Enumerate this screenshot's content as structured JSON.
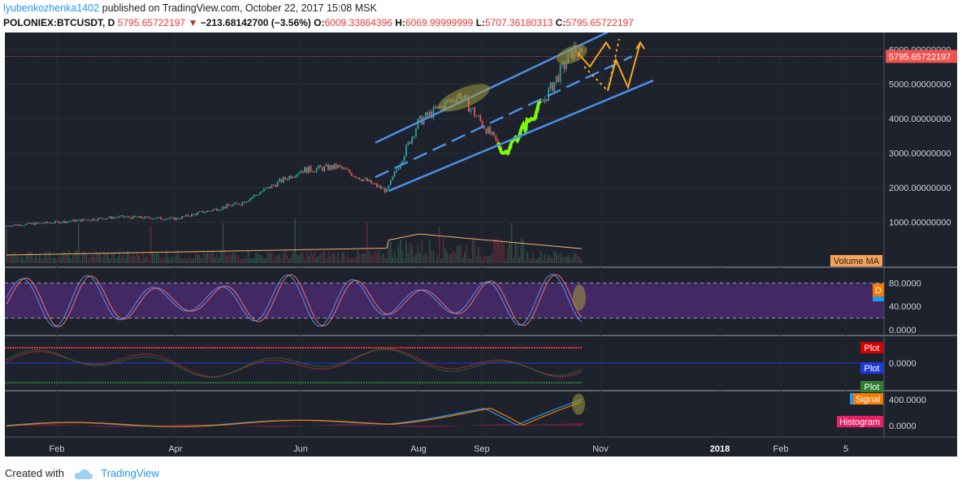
{
  "header": {
    "username": "lyubenkozhenka1402",
    "published_text": " published on TradingView.com, October 22, 2017 15:08 MSK"
  },
  "symbol_bar": {
    "symbol": "POLONIEX:BTCUSDT, D",
    "last": "5795.65722197",
    "change": "−213.68142700 (−3.56%)",
    "open_label": "O:",
    "open": "6009.33864396",
    "high_label": "H:",
    "high": "6069.99999999",
    "low_label": "L:",
    "low": "5707.36180313",
    "close_label": "C:",
    "close": "5795.65722197"
  },
  "chart_data": [
    {
      "type": "candlestick",
      "title": "POLONIEX:BTCUSDT, D",
      "x_ticks": [
        "Feb",
        "Apr",
        "Jun",
        "Aug",
        "Sep",
        "Nov",
        "2018",
        "Feb",
        "5"
      ],
      "y_ticks": [
        "1000.00000000",
        "2000.00000000",
        "3000.00000000",
        "4000.00000000",
        "5000.00000000",
        "6000.00000000"
      ],
      "ylim": [
        0,
        6300
      ],
      "last_price_label": "5795.65722197",
      "anchor_points": [
        {
          "x": "Jan",
          "y": 900
        },
        {
          "x": "Feb",
          "y": 1000
        },
        {
          "x": "Mar",
          "y": 1150
        },
        {
          "x": "Apr",
          "y": 1100
        },
        {
          "x": "May",
          "y": 1550
        },
        {
          "x": "Jun",
          "y": 2500
        },
        {
          "x": "Jul",
          "y": 2600
        },
        {
          "x": "Jul (low)",
          "y": 1900
        },
        {
          "x": "Aug",
          "y": 3900
        },
        {
          "x": "Sep",
          "y": 4700
        },
        {
          "x": "Sep (low)",
          "y": 3000
        },
        {
          "x": "Oct",
          "y": 4400
        },
        {
          "x": "Oct (high)",
          "y": 6000
        },
        {
          "x": "Oct 22",
          "y": 5796
        }
      ],
      "volume_ma_label": "Volume MA",
      "colors": {
        "up": "#26a69a",
        "down": "#ef5350",
        "channel": "#4a90e2",
        "forecast": "#f5a623",
        "highlight": "#7cfc00",
        "ellipse": "#a09a3c"
      }
    },
    {
      "type": "line",
      "name": "stochastic",
      "y_ticks": [
        "80.0000",
        "40.0000",
        "0.0000"
      ],
      "ylim": [
        0,
        100
      ],
      "legend": [
        "D",
        "K"
      ],
      "colors": {
        "band": "#4a2a6e",
        "k": "#5b8def",
        "d": "#e57373"
      }
    },
    {
      "type": "line",
      "name": "oscillator",
      "y_ticks": [
        "0.0000"
      ],
      "legend": [
        "Plot",
        "Plot",
        "Plot"
      ],
      "colors": {
        "upper": "#e53935",
        "mid": "#1e3bd8",
        "lower": "#2e7d32",
        "signal": "#c62828"
      }
    },
    {
      "type": "line",
      "name": "macd",
      "y_ticks": [
        "400.0000",
        "0.0000"
      ],
      "legend": [
        "MACD",
        "Signal",
        "Histogram"
      ],
      "colors": {
        "macd": "#2196f3",
        "signal": "#f57c00",
        "hist": "#e91e63"
      }
    }
  ],
  "footer": {
    "created_with": "Created with",
    "brand": "TradingView"
  }
}
